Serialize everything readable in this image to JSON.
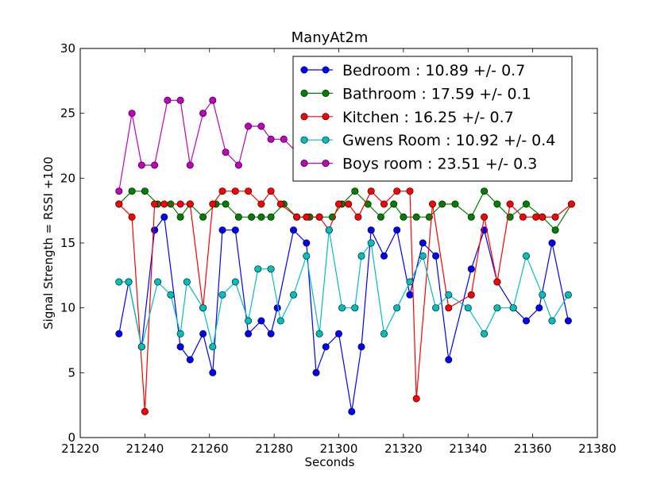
{
  "chart_data": {
    "type": "line",
    "title": "ManyAt2m",
    "xlabel": "Seconds",
    "ylabel": "Signal Strength  = RSSI +100",
    "xlim": [
      21220,
      21380
    ],
    "ylim": [
      0,
      30
    ],
    "xticks": [
      21220,
      21240,
      21260,
      21280,
      21300,
      21320,
      21340,
      21360,
      21380
    ],
    "yticks": [
      0,
      5,
      10,
      15,
      20,
      25,
      30
    ],
    "grid": false,
    "legend_position": "top-right",
    "x": [
      21232,
      21235,
      21237,
      21239,
      21243,
      21245,
      21248,
      21251,
      21253,
      21255,
      21259,
      21261,
      21264,
      21268,
      21272,
      21276,
      21279,
      21283,
      21287,
      21291,
      21293,
      21297,
      21300,
      21304,
      21307,
      21310,
      21314,
      21319,
      21322,
      21326,
      21330,
      21334,
      21341,
      21345,
      21349,
      21354,
      21358,
      21362,
      21367,
      21372
    ],
    "series": [
      {
        "name": "Bedroom : 10.89 +/- 0.7",
        "color": "#0000ff",
        "points": [
          [
            21232,
            8
          ],
          [
            21235,
            12
          ],
          [
            21239,
            7
          ],
          [
            21243,
            16
          ],
          [
            21246,
            17
          ],
          [
            21251,
            7
          ],
          [
            21254,
            6
          ],
          [
            21258,
            8
          ],
          [
            21261,
            5
          ],
          [
            21264,
            16
          ],
          [
            21268,
            16
          ],
          [
            21272,
            8
          ],
          [
            21276,
            9
          ],
          [
            21279,
            8
          ],
          [
            21281,
            10
          ],
          [
            21286,
            16
          ],
          [
            21290,
            15
          ],
          [
            21293,
            5
          ],
          [
            21296,
            7
          ],
          [
            21300,
            8
          ],
          [
            21304,
            2
          ],
          [
            21307,
            7
          ],
          [
            21310,
            16
          ],
          [
            21314,
            14
          ],
          [
            21318,
            16
          ],
          [
            21322,
            11
          ],
          [
            21326,
            15
          ],
          [
            21330,
            14
          ],
          [
            21334,
            6
          ],
          [
            21341,
            13
          ],
          [
            21345,
            16
          ],
          [
            21349,
            12
          ],
          [
            21354,
            10
          ],
          [
            21358,
            9
          ],
          [
            21362,
            10
          ],
          [
            21366,
            15
          ],
          [
            21371,
            9
          ]
        ]
      },
      {
        "name": "Bathroom : 17.59 +/- 0.1",
        "color": "#008000",
        "points": [
          [
            21232,
            18
          ],
          [
            21236,
            19
          ],
          [
            21240,
            19
          ],
          [
            21244,
            18
          ],
          [
            21248,
            18
          ],
          [
            21251,
            17
          ],
          [
            21254,
            18
          ],
          [
            21258,
            17
          ],
          [
            21262,
            18
          ],
          [
            21265,
            18
          ],
          [
            21269,
            17
          ],
          [
            21273,
            17
          ],
          [
            21276,
            17
          ],
          [
            21279,
            17
          ],
          [
            21283,
            18
          ],
          [
            21287,
            17
          ],
          [
            21291,
            17
          ],
          [
            21294,
            17
          ],
          [
            21298,
            17
          ],
          [
            21301,
            18
          ],
          [
            21305,
            19
          ],
          [
            21309,
            18
          ],
          [
            21313,
            17
          ],
          [
            21317,
            18
          ],
          [
            21320,
            17
          ],
          [
            21324,
            17
          ],
          [
            21328,
            17
          ],
          [
            21332,
            18
          ],
          [
            21336,
            18
          ],
          [
            21341,
            17
          ],
          [
            21345,
            19
          ],
          [
            21349,
            18
          ],
          [
            21353,
            17
          ],
          [
            21358,
            18
          ],
          [
            21363,
            17
          ],
          [
            21367,
            16
          ],
          [
            21372,
            18
          ]
        ]
      },
      {
        "name": "Kitchen : 16.25 +/- 0.7",
        "color": "#ff0000",
        "points": [
          [
            21232,
            18
          ],
          [
            21236,
            17
          ],
          [
            21240,
            2
          ],
          [
            21243,
            18
          ],
          [
            21246,
            18
          ],
          [
            21251,
            18
          ],
          [
            21254,
            18
          ],
          [
            21258,
            10
          ],
          [
            21261,
            18
          ],
          [
            21264,
            19
          ],
          [
            21268,
            19
          ],
          [
            21272,
            19
          ],
          [
            21276,
            18
          ],
          [
            21279,
            19
          ],
          [
            21282,
            18
          ],
          [
            21287,
            17
          ],
          [
            21290,
            17
          ],
          [
            21294,
            17
          ],
          [
            21297,
            16
          ],
          [
            21300,
            18
          ],
          [
            21303,
            18
          ],
          [
            21306,
            17
          ],
          [
            21310,
            19
          ],
          [
            21314,
            18
          ],
          [
            21318,
            19
          ],
          [
            21322,
            19
          ],
          [
            21324,
            3
          ],
          [
            21329,
            18
          ],
          [
            21334,
            10
          ],
          [
            21341,
            11
          ],
          [
            21345,
            17
          ],
          [
            21349,
            12
          ],
          [
            21353,
            18
          ],
          [
            21357,
            17
          ],
          [
            21361,
            17
          ],
          [
            21363,
            17
          ],
          [
            21367,
            17
          ],
          [
            21372,
            18
          ]
        ]
      },
      {
        "name": "Gwens Room : 10.92 +/- 0.4",
        "color": "#00bfbf",
        "points": [
          [
            21232,
            12
          ],
          [
            21235,
            12
          ],
          [
            21239,
            7
          ],
          [
            21244,
            12
          ],
          [
            21248,
            11
          ],
          [
            21251,
            8
          ],
          [
            21253,
            12
          ],
          [
            21258,
            10
          ],
          [
            21261,
            7
          ],
          [
            21264,
            11
          ],
          [
            21268,
            12
          ],
          [
            21272,
            9
          ],
          [
            21275,
            13
          ],
          [
            21279,
            13
          ],
          [
            21282,
            9
          ],
          [
            21286,
            11
          ],
          [
            21290,
            14
          ],
          [
            21294,
            8
          ],
          [
            21297,
            16
          ],
          [
            21301,
            10
          ],
          [
            21305,
            10
          ],
          [
            21307,
            14
          ],
          [
            21310,
            15
          ],
          [
            21314,
            8
          ],
          [
            21318,
            10
          ],
          [
            21322,
            12
          ],
          [
            21326,
            14
          ],
          [
            21330,
            10
          ],
          [
            21334,
            11
          ],
          [
            21340,
            10
          ],
          [
            21345,
            8
          ],
          [
            21349,
            10
          ],
          [
            21354,
            10
          ],
          [
            21358,
            14
          ],
          [
            21363,
            11
          ],
          [
            21366,
            9
          ],
          [
            21371,
            11
          ]
        ]
      },
      {
        "name": "Boys room : 23.51 +/- 0.3",
        "color": "#bf00bf",
        "points": [
          [
            21232,
            19
          ],
          [
            21236,
            25
          ],
          [
            21239,
            21
          ],
          [
            21243,
            21
          ],
          [
            21247,
            26
          ],
          [
            21251,
            26
          ],
          [
            21254,
            21
          ],
          [
            21258,
            25
          ],
          [
            21261,
            26
          ],
          [
            21265,
            22
          ],
          [
            21269,
            21
          ],
          [
            21272,
            24
          ],
          [
            21276,
            24
          ],
          [
            21279,
            23
          ],
          [
            21283,
            23
          ],
          [
            21287,
            22
          ]
        ]
      }
    ]
  }
}
